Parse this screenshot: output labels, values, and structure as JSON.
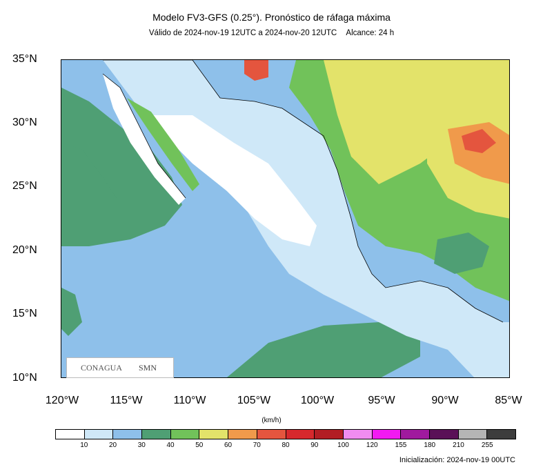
{
  "header": {
    "title": "Modelo FV3-GFS (0.25°). Pronóstico de ráfaga máxima",
    "valid": "Válido de 2024-nov-19 12UTC a 2024-nov-20 12UTC",
    "range": "Alcance: 24 h"
  },
  "axes": {
    "lat_ticks": [
      "35°N",
      "30°N",
      "25°N",
      "20°N",
      "15°N",
      "10°N"
    ],
    "lon_ticks": [
      "120°W",
      "115°W",
      "110°W",
      "105°W",
      "100°W",
      "95°W",
      "90°W",
      "85°W"
    ]
  },
  "colorbar": {
    "units": "(km/h)",
    "labels": [
      "10",
      "20",
      "30",
      "40",
      "50",
      "60",
      "70",
      "80",
      "90",
      "100",
      "120",
      "155",
      "180",
      "210",
      "255"
    ],
    "colors": [
      "#ffffff",
      "#cfe8f8",
      "#8ec0ea",
      "#4f9f74",
      "#71c25a",
      "#e3e36a",
      "#f09a4b",
      "#e4553e",
      "#d6282d",
      "#b21d24",
      "#f08cf0",
      "#f21af2",
      "#a01a9e",
      "#5a1057",
      "#b5b5b5",
      "#3d3d3d"
    ]
  },
  "footer": {
    "init": "Inicialización: 2024-nov-19 00UTC"
  },
  "logos": {
    "conagua": "CONAGUA",
    "smn": "SMN"
  }
}
